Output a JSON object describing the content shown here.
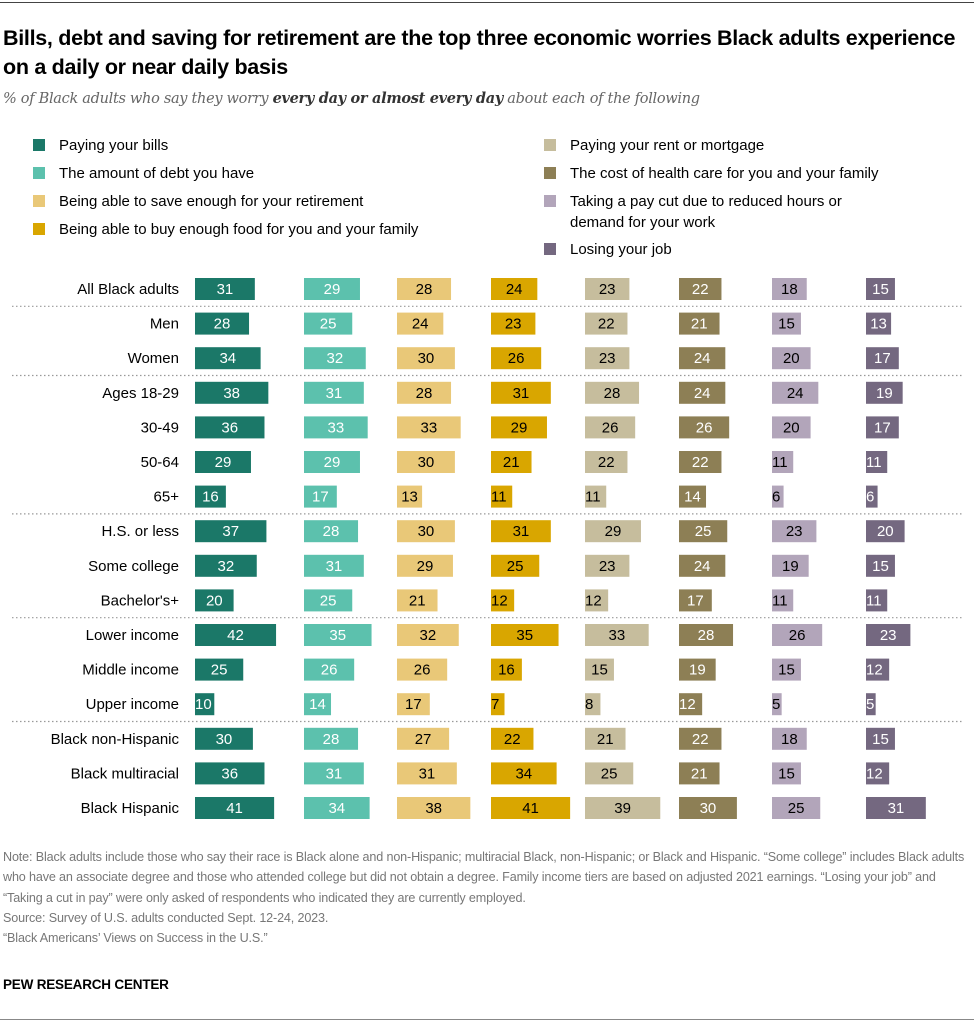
{
  "header": {
    "title": "Bills, debt and saving for retirement are the top three economic worries Black adults experience on a daily or near daily basis",
    "subtitle_prefix": "% of Black adults who say they worry ",
    "subtitle_emphasis": "every day or almost every day",
    "subtitle_suffix": " about each of the following"
  },
  "footer": {
    "note": "Note: Black adults include those who say their race is Black alone and non-Hispanic; multiracial Black, non-Hispanic; or Black and Hispanic. “Some college” includes Black adults who have an associate degree and those who attended college but did not obtain a degree. Family income tiers are based on adjusted 2021 earnings. “Losing your job” and “Taking a cut in pay” were only asked of respondents who indicated they are currently employed.",
    "source": "Source: Survey of U.S. adults conducted Sept. 12-24, 2023.",
    "report": "“Black Americans’ Views on Success in the U.S.”",
    "brand": "PEW RESEARCH CENTER"
  },
  "chart_data": {
    "type": "bar",
    "orientation": "horizontal",
    "layout": "small-multiples",
    "title": "Bills, debt and saving for retirement are the top three economic worries Black adults experience on a daily or near daily basis",
    "subtitle": "% of Black adults who say they worry every day or almost every day about each of the following",
    "xlabel": "",
    "ylabel": "",
    "unit": "%",
    "grid": false,
    "legend_position": "top",
    "categories": [
      "All Black adults",
      "Men",
      "Women",
      "Ages 18-29",
      "30-49",
      "50-64",
      "65+",
      "H.S. or less",
      "Some college",
      "Bachelor's+",
      "Lower income",
      "Middle income",
      "Upper income",
      "Black non-Hispanic",
      "Black multiracial",
      "Black Hispanic"
    ],
    "group_dividers_after": [
      "All Black adults",
      "Women",
      "65+",
      "Bachelor's+",
      "Upper income"
    ],
    "series": [
      {
        "name": "Paying your bills",
        "color": "#1b7868",
        "label_color": "#ffffff",
        "values": [
          31,
          28,
          34,
          38,
          36,
          29,
          16,
          37,
          32,
          20,
          42,
          25,
          10,
          30,
          36,
          41
        ]
      },
      {
        "name": "The amount of debt you have",
        "color": "#5cc1ad",
        "label_color": "#ffffff",
        "values": [
          29,
          25,
          32,
          31,
          33,
          29,
          17,
          28,
          31,
          25,
          35,
          26,
          14,
          28,
          31,
          34
        ]
      },
      {
        "name": "Being able to save enough for your retirement",
        "color": "#e9c878",
        "label_color": "#000000",
        "values": [
          28,
          24,
          30,
          28,
          33,
          30,
          13,
          30,
          29,
          21,
          32,
          26,
          17,
          27,
          31,
          38
        ]
      },
      {
        "name": "Being able to buy enough food for you and your family",
        "color": "#d9a600",
        "label_color": "#000000",
        "values": [
          24,
          23,
          26,
          31,
          29,
          21,
          11,
          31,
          25,
          12,
          35,
          16,
          7,
          22,
          34,
          41
        ]
      },
      {
        "name": "Paying your rent or mortgage",
        "color": "#c6bd9d",
        "label_color": "#000000",
        "values": [
          23,
          22,
          23,
          28,
          26,
          22,
          11,
          29,
          23,
          12,
          33,
          15,
          8,
          21,
          25,
          39
        ]
      },
      {
        "name": "The cost of health care for you and your family",
        "color": "#8d7f55",
        "label_color": "#ffffff",
        "values": [
          22,
          21,
          24,
          24,
          26,
          22,
          14,
          25,
          24,
          17,
          28,
          19,
          12,
          22,
          21,
          30
        ]
      },
      {
        "name": "Taking a pay cut due to reduced hours or demand for your work",
        "color": "#b2a5ba",
        "label_color": "#000000",
        "values": [
          18,
          15,
          20,
          24,
          20,
          11,
          6,
          23,
          19,
          11,
          26,
          15,
          5,
          18,
          15,
          25
        ]
      },
      {
        "name": "Losing your job",
        "color": "#746880",
        "label_color": "#ffffff",
        "values": [
          15,
          13,
          17,
          19,
          17,
          11,
          6,
          20,
          15,
          11,
          23,
          12,
          5,
          15,
          12,
          31
        ]
      }
    ],
    "legend_columns": [
      [
        "Paying your bills",
        "The amount of debt you have",
        "Being able to save enough for your retirement",
        "Being able to buy enough food for you and your family"
      ],
      [
        "Paying your rent or mortgage",
        "The cost of health care for you and your family",
        "Taking a pay cut due to reduced hours or demand for your work",
        "Losing your job"
      ]
    ]
  }
}
